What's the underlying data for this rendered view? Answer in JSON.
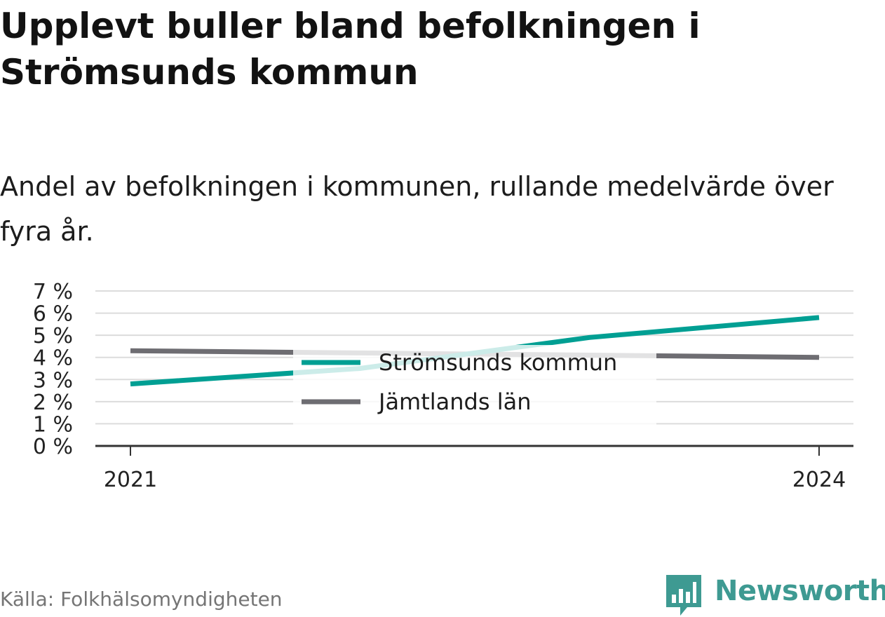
{
  "title": "Upplevt buller bland befolkningen i Strömsunds kommun",
  "subtitle": "Andel av befolkningen i kommunen, rullande medelvärde över fyra år.",
  "source": "Källa: Folkhälsomyndigheten",
  "brand": {
    "name": "Newsworthy",
    "icon": "newsworthy-logo-icon",
    "color": "#3e9a92"
  },
  "chart_data": {
    "type": "line",
    "x": [
      "2021",
      "2022",
      "2023",
      "2024"
    ],
    "x_tick_labels": [
      "2021",
      "2024"
    ],
    "y_tick_labels": [
      "0 %",
      "1 %",
      "2 %",
      "3 %",
      "4 %",
      "5 %",
      "6 %",
      "7 %"
    ],
    "ylim": [
      0,
      7
    ],
    "grid": true,
    "legend_position": "center",
    "series": [
      {
        "name": "Strömsunds kommun",
        "color": "#009f93",
        "values": [
          2.8,
          3.5,
          4.9,
          5.8
        ]
      },
      {
        "name": "Jämtlands län",
        "color": "#6e6d72",
        "values": [
          4.3,
          4.2,
          4.1,
          4.0
        ]
      }
    ]
  }
}
